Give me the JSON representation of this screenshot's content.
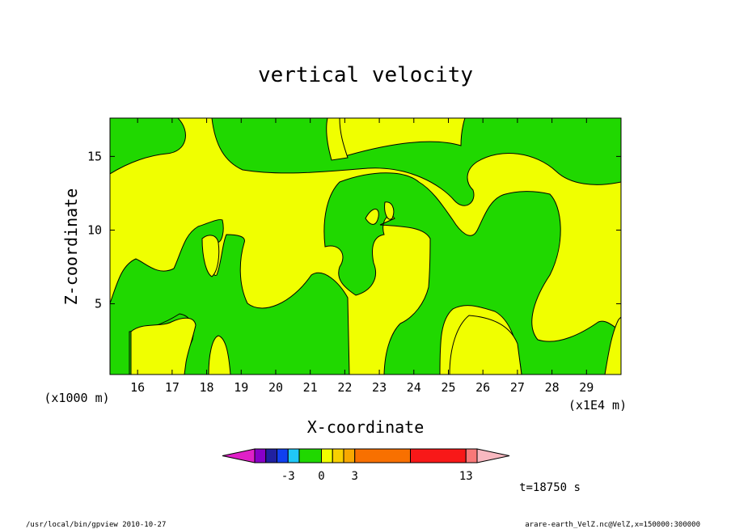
{
  "chart_data": {
    "type": "heatmap",
    "title": "vertical velocity",
    "xlabel": "X-coordinate",
    "ylabel": "Z-coordinate",
    "x_unit": "(x1E4 m)",
    "y_unit": "(x1000 m)",
    "xlim": [
      15.2,
      30.0
    ],
    "ylim": [
      0.2,
      17.6
    ],
    "x_ticks": [
      "16",
      "17",
      "18",
      "19",
      "20",
      "21",
      "22",
      "23",
      "24",
      "25",
      "26",
      "27",
      "28",
      "29"
    ],
    "y_ticks": [
      "5",
      "10",
      "15"
    ],
    "time_label": "t=18750 s",
    "levels": [
      {
        "min": -7,
        "max": -6,
        "color": "#e020c8"
      },
      {
        "min": -6,
        "max": -5,
        "color": "#8800c8"
      },
      {
        "min": -5,
        "max": -4,
        "color": "#2020a0"
      },
      {
        "min": -4,
        "max": -3,
        "color": "#1040f0"
      },
      {
        "min": -3,
        "max": -2,
        "color": "#20c8f8"
      },
      {
        "min": -2,
        "max": 0,
        "color": "#20d800"
      },
      {
        "min": 0,
        "max": 1,
        "color": "#f0ff00"
      },
      {
        "min": 1,
        "max": 2,
        "color": "#f8d000"
      },
      {
        "min": 2,
        "max": 3,
        "color": "#f8a800"
      },
      {
        "min": 3,
        "max": 8,
        "color": "#f87000"
      },
      {
        "min": 8,
        "max": 13,
        "color": "#f81818"
      },
      {
        "min": 13,
        "max": 14,
        "color": "#f87878"
      },
      {
        "min": 14,
        "max": 15,
        "color": "#f8b8c0"
      }
    ],
    "colorbar_labels": [
      "-3",
      "0",
      "3",
      "13"
    ],
    "grid": false,
    "legend": "bottom"
  },
  "footer": {
    "left": "/usr/local/bin/gpview  2010-10-27",
    "right": "arare-earth_VelZ.nc@VelZ,x=150000:300000"
  }
}
